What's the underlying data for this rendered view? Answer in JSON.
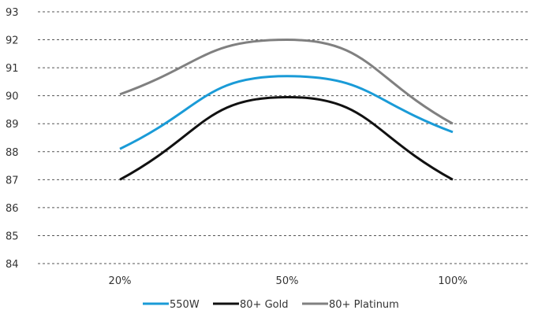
{
  "chart_data": {
    "type": "line",
    "x": [
      "20%",
      "50%",
      "100%"
    ],
    "ylim": [
      84,
      93
    ],
    "yticks": [
      84,
      85,
      86,
      87,
      88,
      89,
      90,
      91,
      92,
      93
    ],
    "grid": true,
    "legend_position": "bottom",
    "series": [
      {
        "name": "550W",
        "values": [
          88.1,
          90.7,
          88.7
        ],
        "color": "#1a9bd7"
      },
      {
        "name": "80+ Gold",
        "values": [
          87.0,
          89.95,
          87.0
        ],
        "color": "#111111"
      },
      {
        "name": "80+ Platinum",
        "values": [
          90.05,
          92.0,
          89.0
        ],
        "color": "#808080"
      }
    ]
  }
}
